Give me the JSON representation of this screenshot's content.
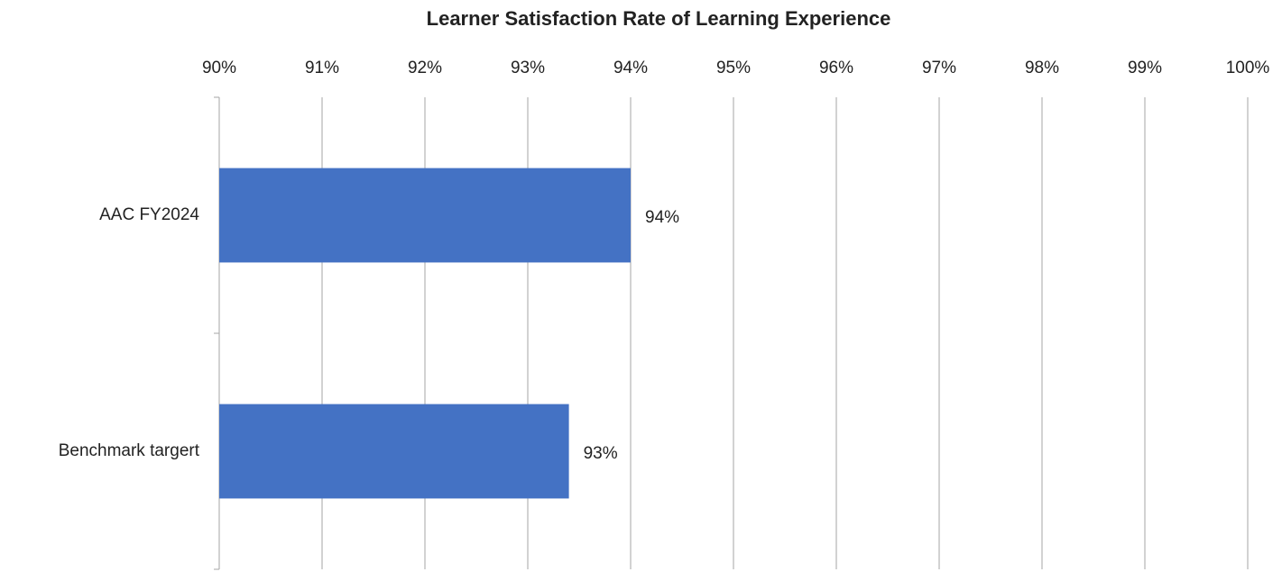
{
  "chart_data": {
    "type": "bar",
    "orientation": "horizontal",
    "title": "Learner Satisfaction Rate of Learning Experience",
    "categories": [
      "AAC FY2024",
      "Benchmark targert"
    ],
    "values": [
      94,
      93.4
    ],
    "value_labels": [
      "94%",
      "93%"
    ],
    "color": "#4472c4",
    "xlim": [
      90,
      100
    ],
    "xticks": [
      {
        "value": 90,
        "label": "90%"
      },
      {
        "value": 91,
        "label": "91%"
      },
      {
        "value": 92,
        "label": "92%"
      },
      {
        "value": 93,
        "label": "93%"
      },
      {
        "value": 94,
        "label": "94%"
      },
      {
        "value": 95,
        "label": "95%"
      },
      {
        "value": 96,
        "label": "96%"
      },
      {
        "value": 97,
        "label": "97%"
      },
      {
        "value": 98,
        "label": "98%"
      },
      {
        "value": 99,
        "label": "99%"
      },
      {
        "value": 100,
        "label": "100%"
      }
    ],
    "grid": true
  }
}
